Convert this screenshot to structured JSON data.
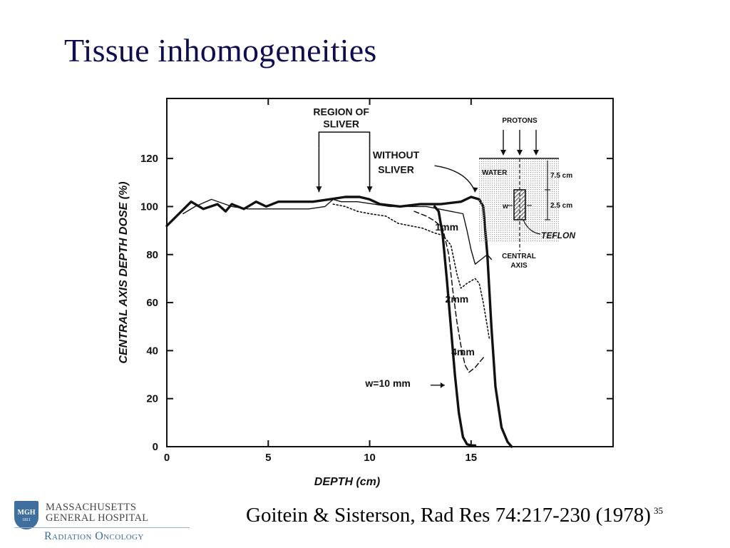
{
  "slide": {
    "title": "Tissue inhomogeneities",
    "citation": "Goitein & Sisterson, Rad Res 74:217-230 (1978)",
    "slide_number": "35"
  },
  "logo": {
    "seal_text": "MGH",
    "seal_year": "1811",
    "line1": "MASSACHUSETTS",
    "line2": "GENERAL HOSPITAL",
    "department": "Radiation Oncology"
  },
  "colors": {
    "title": "#0d0d50",
    "logo_blue": "#3f6f9f",
    "ink": "#111111"
  },
  "chart_data": {
    "type": "line",
    "title": "",
    "xlabel": "DEPTH (cm)",
    "ylabel": "CENTRAL AXIS DEPTH DOSE (%)",
    "xlim": [
      0,
      22
    ],
    "ylim": [
      0,
      145
    ],
    "x_ticks": [
      0,
      5,
      10,
      15
    ],
    "y_ticks": [
      0,
      20,
      40,
      60,
      80,
      100,
      120
    ],
    "grid": false,
    "series": [
      {
        "name": "WITHOUT SLIVER",
        "style": "heavy",
        "points": [
          [
            0,
            92
          ],
          [
            1.2,
            102
          ],
          [
            1.8,
            99
          ],
          [
            2.5,
            101
          ],
          [
            2.9,
            98
          ],
          [
            3.2,
            101
          ],
          [
            3.8,
            99
          ],
          [
            4.4,
            102
          ],
          [
            4.9,
            100
          ],
          [
            5.5,
            102
          ],
          [
            6.5,
            102
          ],
          [
            7.2,
            102
          ],
          [
            8,
            103
          ],
          [
            8.8,
            104
          ],
          [
            9.5,
            104
          ],
          [
            10,
            103
          ],
          [
            10.5,
            101
          ],
          [
            11.5,
            100
          ],
          [
            12.5,
            101
          ],
          [
            13.5,
            101
          ],
          [
            14.5,
            102
          ],
          [
            15,
            104
          ],
          [
            15.4,
            103
          ],
          [
            15.6,
            100
          ],
          [
            15.8,
            80
          ],
          [
            16,
            50
          ],
          [
            16.2,
            25
          ],
          [
            16.5,
            8
          ],
          [
            16.8,
            2
          ],
          [
            17,
            0
          ]
        ]
      },
      {
        "name": "1mm",
        "style": "thin",
        "points": [
          [
            0.8,
            97
          ],
          [
            1.4,
            100
          ],
          [
            2.2,
            103
          ],
          [
            3.2,
            100
          ],
          [
            4,
            99
          ],
          [
            5,
            99
          ],
          [
            6,
            99
          ],
          [
            7,
            99
          ],
          [
            7.8,
            100
          ],
          [
            8.2,
            103
          ],
          [
            8.6,
            102
          ],
          [
            9.4,
            102
          ],
          [
            10.2,
            101
          ],
          [
            11,
            100
          ],
          [
            12,
            100
          ],
          [
            12.8,
            100
          ],
          [
            13.4,
            99
          ],
          [
            14,
            98
          ],
          [
            14.6,
            97
          ],
          [
            14.8,
            90
          ],
          [
            15,
            82
          ],
          [
            15.2,
            76
          ],
          [
            15.5,
            78
          ],
          [
            15.8,
            80
          ],
          [
            16,
            78
          ]
        ]
      },
      {
        "name": "2mm",
        "style": "dotted",
        "points": [
          [
            8.2,
            101
          ],
          [
            8.8,
            100
          ],
          [
            9.4,
            98
          ],
          [
            10,
            97
          ],
          [
            10.8,
            96
          ],
          [
            11.4,
            93
          ],
          [
            12,
            92
          ],
          [
            12.6,
            91
          ],
          [
            13.2,
            89
          ],
          [
            13.6,
            88
          ],
          [
            14,
            84
          ],
          [
            14.3,
            72
          ],
          [
            14.5,
            66
          ],
          [
            14.8,
            68
          ],
          [
            15.2,
            70
          ],
          [
            15.4,
            68
          ],
          [
            15.6,
            60
          ],
          [
            15.8,
            50
          ],
          [
            15.9,
            45
          ]
        ]
      },
      {
        "name": "4mm",
        "style": "dashed",
        "points": [
          [
            12.2,
            98
          ],
          [
            12.8,
            96
          ],
          [
            13.2,
            94
          ],
          [
            13.6,
            91
          ],
          [
            13.9,
            80
          ],
          [
            14.1,
            65
          ],
          [
            14.3,
            52
          ],
          [
            14.5,
            42
          ],
          [
            14.7,
            34
          ],
          [
            14.9,
            31
          ],
          [
            15.2,
            33
          ],
          [
            15.5,
            36
          ],
          [
            15.7,
            38
          ]
        ]
      },
      {
        "name": "w=10 mm",
        "style": "heavy",
        "points": [
          [
            13.2,
            100
          ],
          [
            13.4,
            98
          ],
          [
            13.6,
            88
          ],
          [
            13.8,
            70
          ],
          [
            14,
            50
          ],
          [
            14.2,
            30
          ],
          [
            14.4,
            14
          ],
          [
            14.6,
            4
          ],
          [
            14.8,
            1
          ],
          [
            15,
            0.5
          ],
          [
            15.2,
            0.5
          ]
        ]
      }
    ],
    "annotations": [
      {
        "text": "REGION OF",
        "x": 8.6,
        "y": 138
      },
      {
        "text": "SLIVER",
        "x": 8.6,
        "y": 133
      },
      {
        "text": "WITHOUT",
        "x": 11.3,
        "y": 120
      },
      {
        "text": "SLIVER",
        "x": 11.3,
        "y": 114
      },
      {
        "text": "1mm",
        "x": 13.8,
        "y": 90
      },
      {
        "text": "2mm",
        "x": 14.3,
        "y": 60
      },
      {
        "text": "4mm",
        "x": 14.6,
        "y": 38
      },
      {
        "text": "w=10 mm",
        "x": 10.9,
        "y": 25
      }
    ],
    "inset": {
      "labels": {
        "protons": "PROTONS",
        "water": "WATER",
        "depth_to_slab": "7.5 cm",
        "slab_thickness": "2.5 cm",
        "slab_material": "TEFLON",
        "width_symbol": "w",
        "axis_line1": "CENTRAL",
        "axis_line2": "AXIS"
      }
    }
  }
}
